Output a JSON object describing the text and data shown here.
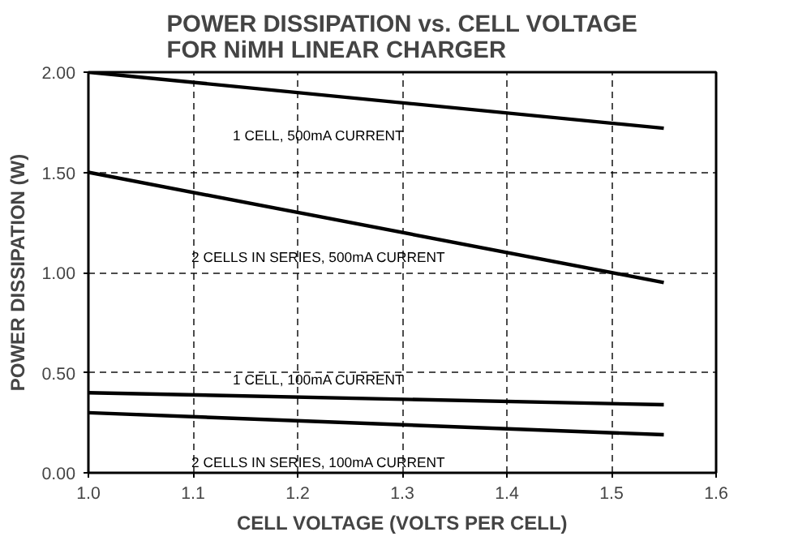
{
  "chart_data": {
    "type": "line",
    "title": "POWER DISSIPATION vs. CELL VOLTAGE\nFOR NiMH LINEAR CHARGER",
    "xlabel": "CELL VOLTAGE (VOLTS PER CELL)",
    "ylabel": "POWER DISSIPATION (W)",
    "x": [
      1.0,
      1.55
    ],
    "series": [
      {
        "name": "1 CELL, 500mA CURRENT",
        "color": "#000000",
        "values": [
          2.0,
          1.72
        ]
      },
      {
        "name": "2 CELLS IN SERIES, 500mA CURRENT",
        "color": "#000000",
        "values": [
          1.5,
          0.95
        ]
      },
      {
        "name": "1 CELL, 100mA CURRENT",
        "color": "#000000",
        "values": [
          0.4,
          0.34
        ]
      },
      {
        "name": "2 CELLS IN SERIES, 100mA CURRENT",
        "color": "#000000",
        "values": [
          0.3,
          0.19
        ]
      }
    ],
    "xlim": [
      1.0,
      1.6
    ],
    "ylim": [
      0,
      2.0
    ],
    "xticks": [
      {
        "value": 1.0,
        "label": "1.0"
      },
      1.1,
      1.2,
      1.3,
      1.4,
      1.5,
      1.6
    ],
    "yticks": [
      {
        "value": 0,
        "label": "0.00"
      },
      {
        "value": 0.5,
        "label": "0.50"
      },
      {
        "value": 1.0,
        "label": "1.00"
      },
      {
        "value": 1.5,
        "label": "1.50"
      },
      {
        "value": 2.0,
        "label": "2.00"
      }
    ],
    "grid": true,
    "line_style": "solid",
    "marker": "none",
    "legend": false
  }
}
